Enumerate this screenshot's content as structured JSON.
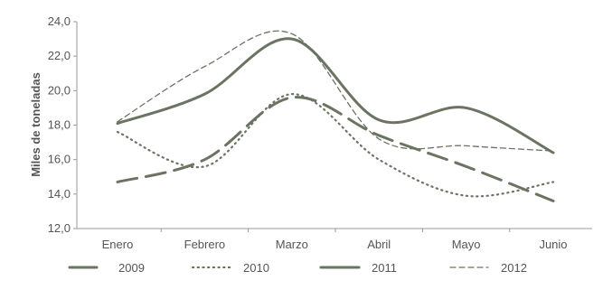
{
  "chart_data": {
    "type": "line",
    "ylabel": "Miles de toneladas",
    "xlabel": "",
    "categories": [
      "Enero",
      "Febrero",
      "Marzo",
      "Abril",
      "Mayo",
      "Junio"
    ],
    "ylim": [
      12.0,
      24.0
    ],
    "yticks": [
      "12,0",
      "14,0",
      "16,0",
      "18,0",
      "20,0",
      "22,0",
      "24,0"
    ],
    "ytick_values": [
      12,
      14,
      16,
      18,
      20,
      22,
      24
    ],
    "grid": false,
    "legend_position": "bottom",
    "series": [
      {
        "name": "2009",
        "style": "longdash",
        "values": [
          14.7,
          16.0,
          19.6,
          17.4,
          15.6,
          13.6
        ]
      },
      {
        "name": "2010",
        "style": "dotted",
        "values": [
          17.6,
          15.6,
          19.8,
          16.0,
          13.9,
          14.7
        ]
      },
      {
        "name": "2011",
        "style": "solid",
        "values": [
          18.1,
          19.8,
          23.0,
          18.3,
          19.0,
          16.4
        ]
      },
      {
        "name": "2012",
        "style": "dashed",
        "values": [
          18.2,
          21.4,
          23.3,
          17.2,
          16.8,
          16.5
        ]
      }
    ],
    "colors": {
      "line": "#6b7362",
      "axis": "#9a9a9a",
      "text": "#555555"
    }
  }
}
